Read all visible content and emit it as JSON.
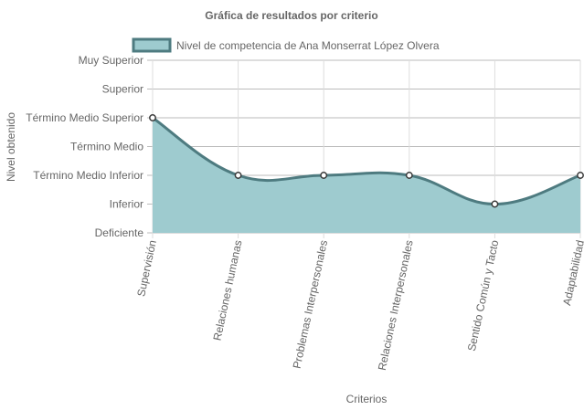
{
  "chart_data": {
    "type": "area",
    "title": "Gráfica de resultados por criterio",
    "xlabel": "Criterios",
    "ylabel": "Nivel obtenido",
    "y_levels": [
      "Deficiente",
      "Inferior",
      "Término Medio Inferior",
      "Término Medio",
      "Término Medio Superior",
      "Superior",
      "Muy Superior"
    ],
    "categories": [
      "Supervisión",
      "Relaciones humanas",
      "Problemas Interpersonales",
      "Relaciones Interpersonales",
      "Sentido Común y Tacto",
      "Adaptabilidad"
    ],
    "series": [
      {
        "name": "Nivel de competencia de Ana Monserrat López Olvera",
        "values": [
          4,
          2,
          2,
          2,
          1,
          2
        ],
        "value_labels": [
          "Término Medio Superior",
          "Término Medio Inferior",
          "Término Medio Inferior",
          "Término Medio Inferior",
          "Inferior",
          "Término Medio Inferior"
        ]
      }
    ],
    "ylim": [
      0,
      6
    ],
    "grid": true,
    "legend_position": "top",
    "colors": {
      "fill": "#9ecbcf",
      "line": "#4e7b80",
      "point_fill": "#ffffff",
      "point_stroke": "#3a3a3a"
    }
  }
}
